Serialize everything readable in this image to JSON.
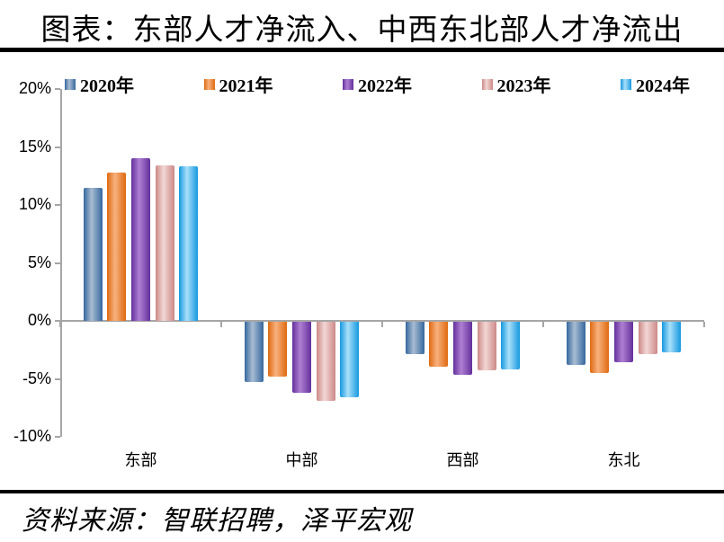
{
  "title": "图表：东部人才净流入、中西东北部人才净流出",
  "source_note": "资料来源：智联招聘，泽平宏观",
  "colors": {
    "background": "#FFFFFF",
    "axis": "#A6A6A6",
    "rule": "#000000",
    "text": "#000000"
  },
  "chart_data": {
    "type": "bar",
    "title": "图表：东部人才净流入、中西东北部人才净流出",
    "categories": [
      "东部",
      "中部",
      "西部",
      "东北"
    ],
    "series": [
      {
        "name": "2020年",
        "values": [
          11.5,
          -5.2,
          -2.8,
          -3.7
        ],
        "color_edge": "#35689E",
        "color_center": "#A8BCD2"
      },
      {
        "name": "2021年",
        "values": [
          12.8,
          -4.7,
          -3.9,
          -4.4
        ],
        "color_edge": "#DE6A10",
        "color_center": "#F8B17E"
      },
      {
        "name": "2022年",
        "values": [
          14.0,
          -6.1,
          -4.6,
          -3.5
        ],
        "color_edge": "#63309B",
        "color_center": "#AF7FD3"
      },
      {
        "name": "2023年",
        "values": [
          13.4,
          -6.8,
          -4.2,
          -2.8
        ],
        "color_edge": "#CC8987",
        "color_center": "#F2D7D5"
      },
      {
        "name": "2024年",
        "values": [
          13.3,
          -6.5,
          -4.1,
          -2.6
        ],
        "color_edge": "#1698DF",
        "color_center": "#A9E0FA"
      }
    ],
    "ylim": [
      -10,
      20
    ],
    "ytick_step": 5,
    "ytick_labels": [
      "20%",
      "15%",
      "10%",
      "5%",
      "0%",
      "-5%",
      "-10%"
    ],
    "legend_position": "top",
    "grid": false
  }
}
